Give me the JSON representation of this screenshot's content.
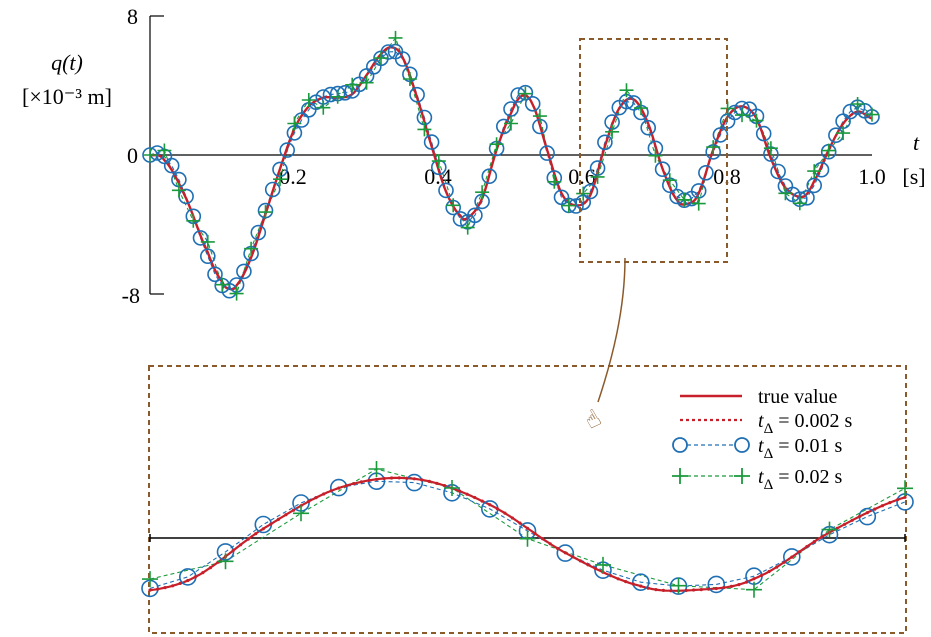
{
  "chart_data": [
    {
      "type": "line",
      "xlabel": "t",
      "xunit": "[s]",
      "ylabel": "q(t)",
      "yunit": "[×10⁻³ m]",
      "xlim": [
        0,
        1.0
      ],
      "ylim": [
        -8,
        8
      ],
      "yticks": [
        "8",
        "0",
        "-8"
      ],
      "xticks": [
        "0.2",
        "0.4",
        "0.6",
        "0.8",
        "1.0"
      ],
      "series_names": [
        "true value",
        "t_Δ = 0.002 s",
        "t_Δ = 0.01 s",
        "t_Δ = 0.02 s"
      ],
      "zoom_window": {
        "x": [
          0.6,
          0.8
        ],
        "y": [
          -6.3,
          6.8
        ]
      }
    },
    {
      "type": "line",
      "legend": {
        "placement": "top-right",
        "items": [
          {
            "label": "true value",
            "sub": "",
            "rest": "",
            "color": "#c8202a"
          },
          {
            "label": "t",
            "sub": "Δ",
            "rest": " = 0.002 s",
            "color": "#c8202a"
          },
          {
            "label": "t",
            "sub": "Δ",
            "rest": " = 0.01 s",
            "color": "#1f6fb5"
          },
          {
            "label": "t",
            "sub": "Δ",
            "rest": " = 0.02 s",
            "color": "#1b9a3c"
          }
        ]
      },
      "xlim": [
        0.6,
        0.8
      ]
    }
  ],
  "colors": {
    "true": "#c8202a",
    "fine": "#c8202a",
    "circle": "#1f6fb5",
    "plus": "#1b9a3c",
    "box": "#8b5a2b"
  }
}
